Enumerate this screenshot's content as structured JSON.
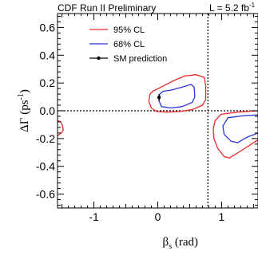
{
  "chart_data": {
    "type": "line",
    "header_left": "CDF Run II Preliminary",
    "header_right": "L = 5.2 fb",
    "header_right_sup": "-1",
    "ylabel_main": "ΔΓ (ps",
    "ylabel_sup": "-1",
    "ylabel_end": ")",
    "xlabel_main": "β",
    "xlabel_sub": "s",
    "xlabel_end": " (rad)",
    "xlim": [
      -1.57,
      1.57
    ],
    "ylim": [
      -0.7,
      0.7
    ],
    "x_ticks": [
      -1,
      0,
      1
    ],
    "y_ticks": [
      0.6,
      0.4,
      0.2,
      0.0,
      -0.2,
      -0.4,
      -0.6
    ],
    "y_tick_labels": [
      "0.6",
      "0.4",
      "0.2",
      "0.0",
      "-0.2",
      "-0.4",
      "-0.6"
    ],
    "x_tick_labels": [
      "-1",
      "0",
      "1"
    ],
    "reference_lines": {
      "x": 0.785,
      "y": 0.0
    },
    "legend": [
      {
        "label": "95% CL",
        "color": "#e8282a",
        "style": "line"
      },
      {
        "label": "68% CL",
        "color": "#2a35d6",
        "style": "line"
      },
      {
        "label": "SM prediction",
        "color": "#000000",
        "style": "marker"
      }
    ],
    "sm_prediction": {
      "x": 0.02,
      "y": 0.096,
      "y_err": 0.024
    },
    "series": [
      {
        "name": "95% CL",
        "color": "#e8282a",
        "contours": [
          [
            [
              -0.12,
              0.12
            ],
            [
              -0.14,
              0.07
            ],
            [
              -0.1,
              0.02
            ],
            [
              -0.02,
              -0.005
            ],
            [
              0.15,
              -0.01
            ],
            [
              0.35,
              -0.005
            ],
            [
              0.55,
              0.01
            ],
            [
              0.7,
              0.04
            ],
            [
              0.75,
              0.08
            ],
            [
              0.75,
              0.18
            ],
            [
              0.73,
              0.24
            ],
            [
              0.6,
              0.26
            ],
            [
              0.42,
              0.25
            ],
            [
              0.22,
              0.21
            ],
            [
              0.05,
              0.17
            ],
            [
              -0.08,
              0.14
            ],
            [
              -0.12,
              0.12
            ]
          ],
          [
            [
              1.57,
              0.0
            ],
            [
              1.25,
              -0.01
            ],
            [
              0.99,
              -0.025
            ],
            [
              0.9,
              -0.07
            ],
            [
              0.87,
              -0.13
            ],
            [
              0.88,
              -0.2
            ],
            [
              0.94,
              -0.27
            ],
            [
              1.04,
              -0.33
            ],
            [
              1.12,
              -0.34
            ],
            [
              1.3,
              -0.29
            ],
            [
              1.5,
              -0.23
            ],
            [
              1.57,
              -0.21
            ]
          ],
          [
            [
              -1.57,
              -0.07
            ],
            [
              -1.52,
              -0.08
            ],
            [
              -1.49,
              -0.11
            ],
            [
              -1.48,
              -0.14
            ],
            [
              -1.51,
              -0.16
            ],
            [
              -1.57,
              -0.18
            ]
          ]
        ]
      },
      {
        "name": "68% CL",
        "color": "#2a35d6",
        "contours": [
          [
            [
              0.03,
              0.12
            ],
            [
              0.02,
              0.07
            ],
            [
              0.06,
              0.03
            ],
            [
              0.2,
              0.02
            ],
            [
              0.38,
              0.03
            ],
            [
              0.54,
              0.06
            ],
            [
              0.58,
              0.1
            ],
            [
              0.57,
              0.17
            ],
            [
              0.52,
              0.19
            ],
            [
              0.38,
              0.17
            ],
            [
              0.22,
              0.15
            ],
            [
              0.08,
              0.14
            ],
            [
              0.03,
              0.12
            ]
          ],
          [
            [
              1.57,
              -0.03
            ],
            [
              1.35,
              -0.035
            ],
            [
              1.1,
              -0.05
            ],
            [
              1.02,
              -0.11
            ],
            [
              1.04,
              -0.17
            ],
            [
              1.15,
              -0.22
            ],
            [
              1.25,
              -0.23
            ],
            [
              1.4,
              -0.19
            ],
            [
              1.57,
              -0.16
            ]
          ]
        ]
      }
    ],
    "grid": false,
    "legend_position": "top-left"
  }
}
